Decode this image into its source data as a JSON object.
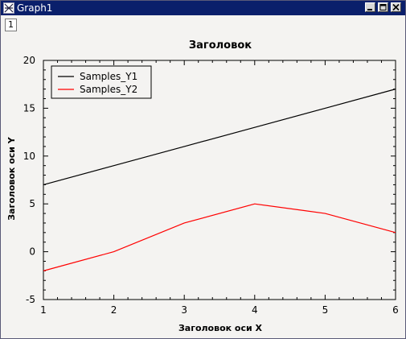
{
  "window": {
    "title": "Graph1",
    "layer_tab": "1"
  },
  "colors": {
    "titlebar": "#0a1f6b",
    "series1": "#000000",
    "series2": "#ff0000"
  },
  "icons": {
    "app": "graph-window-icon",
    "minimize": "minimize-icon",
    "maximize": "maximize-icon",
    "close": "close-icon"
  },
  "chart_data": {
    "type": "line",
    "title": "Заголовок",
    "xlabel": "Заголовок оси X",
    "ylabel": "Заголовок оси Y",
    "xlim": [
      1,
      6
    ],
    "ylim": [
      -5,
      20
    ],
    "x_ticks": [
      1,
      2,
      3,
      4,
      5,
      6
    ],
    "y_ticks": [
      -5,
      0,
      5,
      10,
      15,
      20
    ],
    "grid": false,
    "legend_position": "top-left",
    "x": [
      1,
      2,
      3,
      4,
      5,
      6
    ],
    "series": [
      {
        "name": "Samples_Y1",
        "values": [
          7,
          9,
          11,
          13,
          15,
          17
        ],
        "color": "#000000"
      },
      {
        "name": "Samples_Y2",
        "values": [
          -2,
          0,
          3,
          5,
          4,
          2
        ],
        "color": "#ff0000"
      }
    ]
  }
}
